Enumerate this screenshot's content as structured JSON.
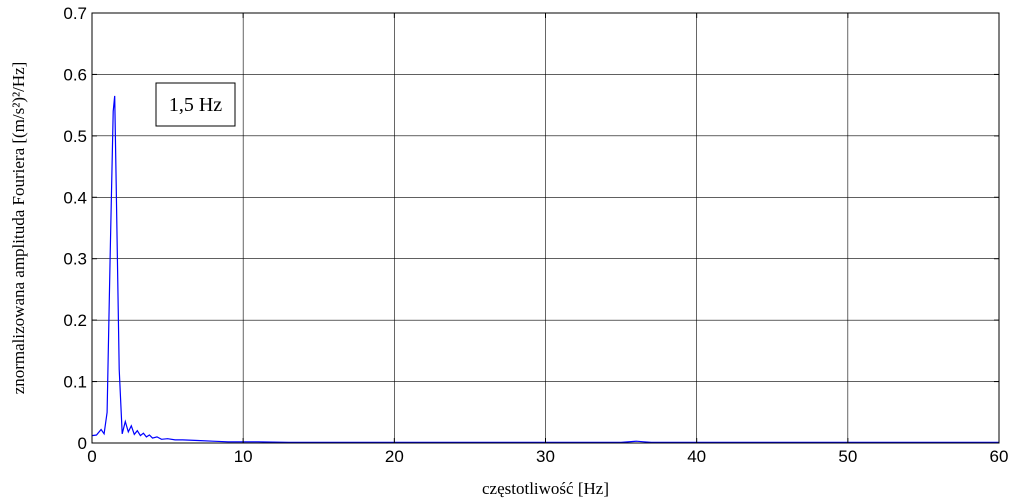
{
  "chart_data": {
    "type": "line",
    "title": "",
    "xlabel": "częstotliwość [Hz]",
    "ylabel": "znormalizowana amplituda Fouriera [(m/s²)²/Hz]",
    "xlim": [
      0,
      60
    ],
    "ylim": [
      0,
      0.7
    ],
    "xticks": [
      "0",
      "10",
      "20",
      "30",
      "40",
      "50",
      "60"
    ],
    "yticks": [
      "0",
      "0.1",
      "0.2",
      "0.3",
      "0.4",
      "0.5",
      "0.6",
      "0.7"
    ],
    "grid": true,
    "line_color": "#0000ff",
    "annotations": [
      {
        "text": "1,5 Hz",
        "x": 1.5,
        "y": 0.565
      }
    ],
    "series": [
      {
        "x": [
          0,
          0.3,
          0.6,
          0.8,
          1.0,
          1.2,
          1.4,
          1.5,
          1.6,
          1.8,
          2.0,
          2.2,
          2.4,
          2.6,
          2.8,
          3.0,
          3.2,
          3.4,
          3.6,
          3.8,
          4.0,
          4.3,
          4.6,
          5.0,
          5.5,
          6.0,
          7.0,
          8.0,
          9.0,
          10.0,
          11.0,
          12.0,
          13.0,
          20.0,
          28.0,
          30.0,
          35.0,
          36.0,
          36.5,
          37.0,
          40.0,
          50.0,
          60.0
        ],
        "y": [
          0.012,
          0.013,
          0.022,
          0.015,
          0.05,
          0.3,
          0.54,
          0.565,
          0.42,
          0.12,
          0.015,
          0.035,
          0.018,
          0.028,
          0.014,
          0.02,
          0.012,
          0.016,
          0.01,
          0.013,
          0.008,
          0.01,
          0.006,
          0.007,
          0.005,
          0.005,
          0.004,
          0.003,
          0.002,
          0.002,
          0.002,
          0.0015,
          0.001,
          0.001,
          0.001,
          0.001,
          0.001,
          0.003,
          0.002,
          0.001,
          0.001,
          0.001,
          0.001
        ]
      }
    ]
  }
}
